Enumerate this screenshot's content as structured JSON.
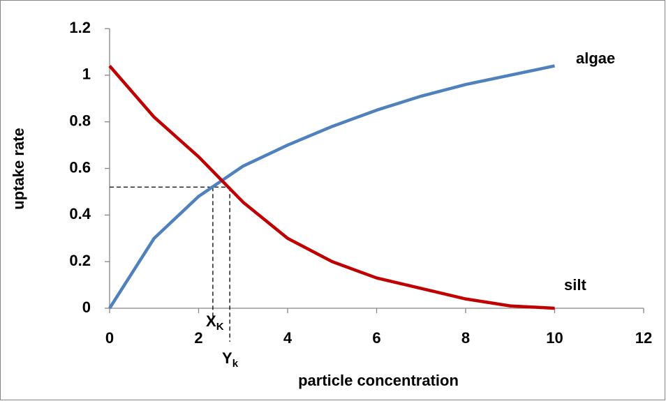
{
  "chart_data": {
    "type": "line",
    "x_label": "particle concentration",
    "y_label": "uptake rate",
    "x": [
      0,
      1,
      2,
      3,
      4,
      5,
      6,
      7,
      8,
      9,
      10
    ],
    "series": [
      {
        "name": "algae",
        "color": "#4f81bd",
        "values": [
          0,
          0.3,
          0.48,
          0.61,
          0.7,
          0.78,
          0.85,
          0.91,
          0.96,
          1.0,
          1.04
        ]
      },
      {
        "name": "silt",
        "color": "#c00000",
        "values": [
          1.04,
          0.82,
          0.65,
          0.455,
          0.3,
          0.2,
          0.13,
          0.085,
          0.04,
          0.01,
          0
        ]
      }
    ],
    "markers": [
      {
        "x": 2.32,
        "y": 0.52,
        "label": "X",
        "subscript": "K"
      },
      {
        "x": 2.7,
        "y": 0.52,
        "label": "Y",
        "subscript": "k"
      }
    ],
    "xlim": [
      0,
      12
    ],
    "xticks": [
      0,
      2,
      4,
      6,
      8,
      10,
      12
    ],
    "ylim": [
      0,
      1.2
    ],
    "yticks": [
      0,
      0.2,
      0.4,
      0.6,
      0.8,
      1,
      1.2
    ],
    "grid": false
  }
}
